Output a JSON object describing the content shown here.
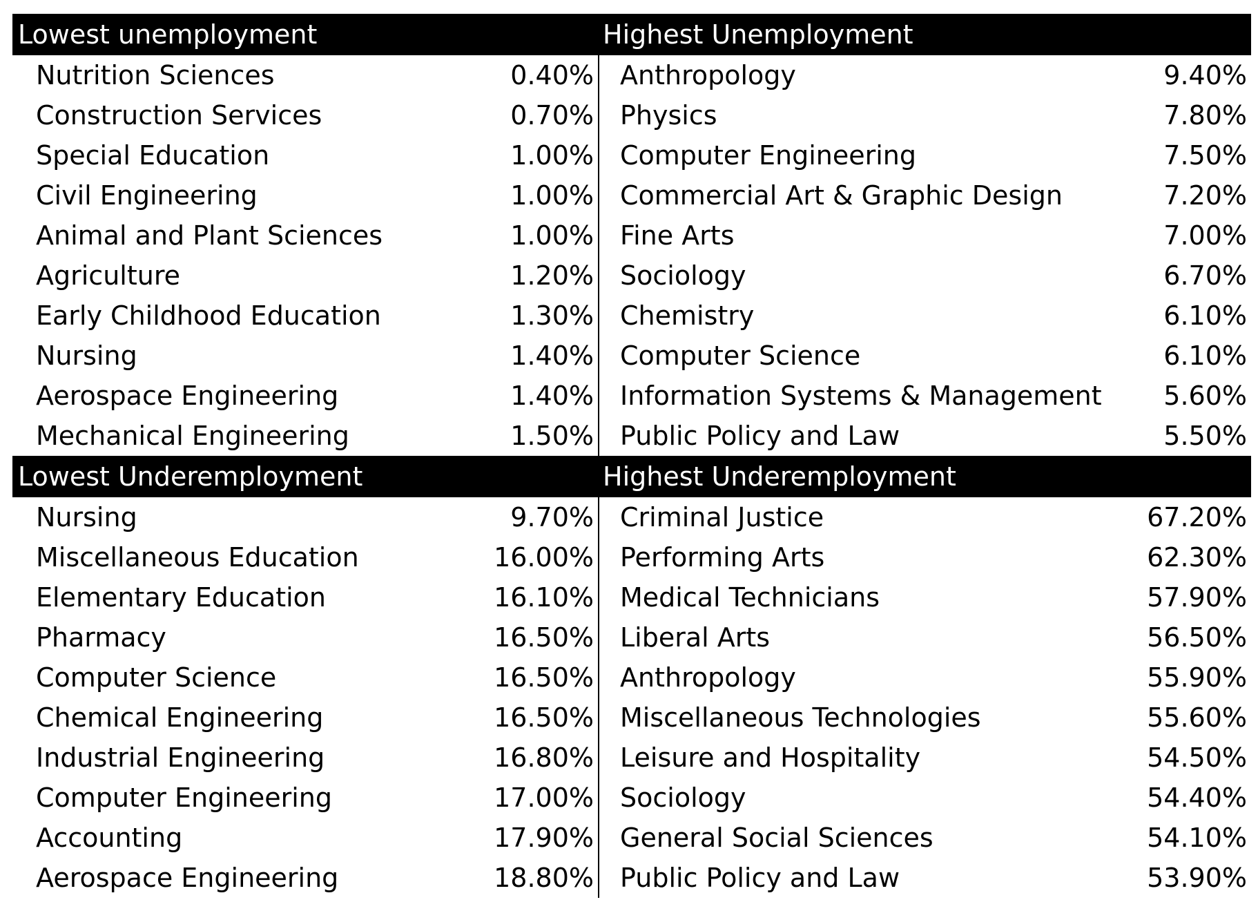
{
  "chart_data": {
    "type": "table",
    "tables": [
      {
        "title": "Lowest unemployment",
        "rows": [
          {
            "major": "Nutrition Sciences",
            "value": "0.40%"
          },
          {
            "major": "Construction Services",
            "value": "0.70%"
          },
          {
            "major": "Special Education",
            "value": "1.00%"
          },
          {
            "major": "Civil Engineering",
            "value": "1.00%"
          },
          {
            "major": "Animal and Plant Sciences",
            "value": "1.00%"
          },
          {
            "major": "Agriculture",
            "value": "1.20%"
          },
          {
            "major": "Early Childhood Education",
            "value": "1.30%"
          },
          {
            "major": "Nursing",
            "value": "1.40%"
          },
          {
            "major": "Aerospace Engineering",
            "value": "1.40%"
          },
          {
            "major": "Mechanical Engineering",
            "value": "1.50%"
          }
        ]
      },
      {
        "title": "Highest Unemployment",
        "rows": [
          {
            "major": "Anthropology",
            "value": "9.40%"
          },
          {
            "major": "Physics",
            "value": "7.80%"
          },
          {
            "major": "Computer Engineering",
            "value": "7.50%"
          },
          {
            "major": "Commercial Art & Graphic Design",
            "value": "7.20%"
          },
          {
            "major": "Fine Arts",
            "value": "7.00%"
          },
          {
            "major": "Sociology",
            "value": "6.70%"
          },
          {
            "major": "Chemistry",
            "value": "6.10%"
          },
          {
            "major": "Computer Science",
            "value": "6.10%"
          },
          {
            "major": "Information Systems & Management",
            "value": "5.60%"
          },
          {
            "major": "Public Policy and Law",
            "value": "5.50%"
          }
        ]
      },
      {
        "title": "Lowest Underemployment",
        "rows": [
          {
            "major": "Nursing",
            "value": "9.70%"
          },
          {
            "major": "Miscellaneous Education",
            "value": "16.00%"
          },
          {
            "major": "Elementary Education",
            "value": "16.10%"
          },
          {
            "major": "Pharmacy",
            "value": "16.50%"
          },
          {
            "major": "Computer Science",
            "value": "16.50%"
          },
          {
            "major": "Chemical Engineering",
            "value": "16.50%"
          },
          {
            "major": "Industrial Engineering",
            "value": "16.80%"
          },
          {
            "major": "Computer Engineering",
            "value": "17.00%"
          },
          {
            "major": "Accounting",
            "value": "17.90%"
          },
          {
            "major": "Aerospace Engineering",
            "value": "18.80%"
          }
        ]
      },
      {
        "title": "Highest Underemployment",
        "rows": [
          {
            "major": "Criminal Justice",
            "value": "67.20%"
          },
          {
            "major": "Performing Arts",
            "value": "62.30%"
          },
          {
            "major": "Medical Technicians",
            "value": "57.90%"
          },
          {
            "major": "Liberal Arts",
            "value": "56.50%"
          },
          {
            "major": "Anthropology",
            "value": "55.90%"
          },
          {
            "major": "Miscellaneous Technologies",
            "value": "55.60%"
          },
          {
            "major": "Leisure and Hospitality",
            "value": "54.50%"
          },
          {
            "major": "Sociology",
            "value": "54.40%"
          },
          {
            "major": "General Social Sciences",
            "value": "54.10%"
          },
          {
            "major": "Public Policy and Law",
            "value": "53.90%"
          }
        ]
      }
    ]
  },
  "colors": {
    "header_background": "#000000",
    "header_text": "#ffffff",
    "body_text": "#000000",
    "divider": "#000000",
    "background": "#ffffff"
  }
}
